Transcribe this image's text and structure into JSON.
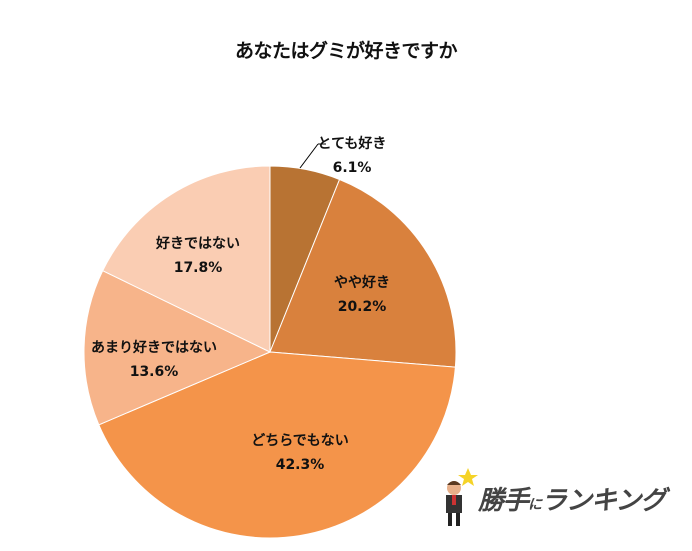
{
  "chart_data": {
    "type": "pie",
    "title": "あなたはグミが好きですか",
    "start_angle_deg": 0,
    "direction": "clockwise",
    "slices": [
      {
        "label": "とても好き",
        "value": 6.1,
        "display": "6.1%",
        "color": "#B87333"
      },
      {
        "label": "やや好き",
        "value": 20.2,
        "display": "20.2%",
        "color": "#D9813D"
      },
      {
        "label": "どちらでもない",
        "value": 42.3,
        "display": "42.3%",
        "color": "#F4944A"
      },
      {
        "label": "あまり好きではない",
        "value": 13.6,
        "display": "13.6%",
        "color": "#F7B48A"
      },
      {
        "label": "好きではない",
        "value": 17.8,
        "display": "17.8%",
        "color": "#FACDB3"
      }
    ],
    "legend": "none",
    "data_labels": "category name and percentage"
  },
  "labels": [
    {
      "name": "とても好き",
      "pct": "6.1%"
    },
    {
      "name": "やや好き",
      "pct": "20.2%"
    },
    {
      "name": "どちらでもない",
      "pct": "42.3%"
    },
    {
      "name": "あまり好きではない",
      "pct": "13.6%"
    },
    {
      "name": "好きではない",
      "pct": "17.8%"
    }
  ],
  "logo": {
    "main": "勝手",
    "ni": "に",
    "rest": "ランキング"
  }
}
